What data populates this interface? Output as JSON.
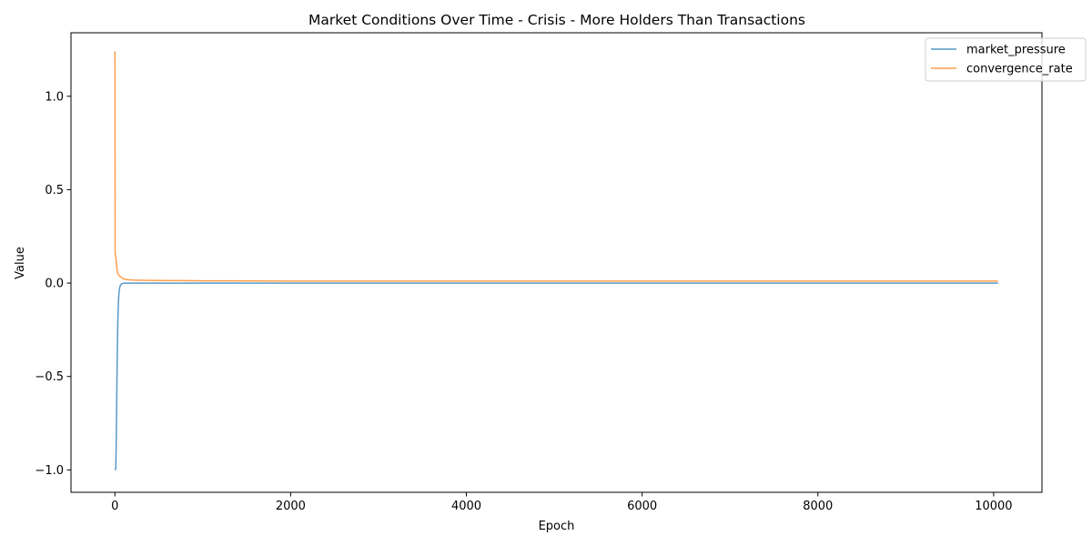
{
  "chart_data": {
    "type": "line",
    "title": "Market Conditions Over Time - Crisis - More Holders Than Transactions",
    "xlabel": "Epoch",
    "ylabel": "Value",
    "xlim": [
      -500,
      10550
    ],
    "ylim": [
      -1.12,
      1.34
    ],
    "xticks": [
      0,
      2000,
      4000,
      6000,
      8000,
      10000
    ],
    "xtick_labels": [
      "0",
      "2000",
      "4000",
      "6000",
      "8000",
      "10000"
    ],
    "yticks": [
      -1.0,
      -0.5,
      0.0,
      0.5,
      1.0
    ],
    "ytick_labels": [
      "−1.0",
      "−0.5",
      "0.0",
      "0.5",
      "1.0"
    ],
    "grid": false,
    "legend_position": "top-right",
    "series": [
      {
        "name": "market_pressure",
        "color": "#1f77b4",
        "x": [
          0,
          5,
          10,
          15,
          20,
          25,
          30,
          35,
          40,
          45,
          50,
          60,
          70,
          80,
          90,
          100,
          150,
          200,
          500,
          1000,
          2000,
          5000,
          8000,
          10050
        ],
        "y": [
          -1.0,
          -1.0,
          -0.99,
          -0.85,
          -0.65,
          -0.45,
          -0.28,
          -0.17,
          -0.1,
          -0.06,
          -0.035,
          -0.015,
          -0.007,
          -0.003,
          -0.0015,
          -0.001,
          -0.0005,
          -0.0003,
          -0.0002,
          -0.0001,
          0,
          0,
          0,
          0
        ]
      },
      {
        "name": "convergence_rate",
        "color": "#ff7f0e",
        "x": [
          0,
          1,
          2,
          3,
          5,
          10,
          15,
          20,
          25,
          30,
          40,
          60,
          80,
          100,
          150,
          200,
          300,
          500,
          800,
          1000,
          2000,
          5000,
          8000,
          10050
        ],
        "y": [
          1.24,
          1.1,
          0.5,
          0.16,
          0.15,
          0.14,
          0.12,
          0.09,
          0.07,
          0.055,
          0.045,
          0.035,
          0.028,
          0.022,
          0.018,
          0.016,
          0.015,
          0.014,
          0.013,
          0.012,
          0.011,
          0.011,
          0.011,
          0.011
        ]
      }
    ]
  }
}
